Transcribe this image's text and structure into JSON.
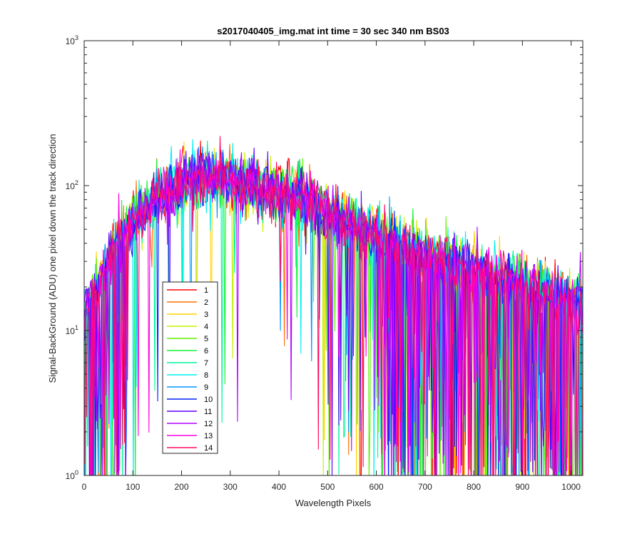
{
  "chart_data": {
    "type": "line",
    "title": "s2017040405_img.mat int time = 30 sec  340 nm BS03",
    "xlabel": "Wavelength Pixels",
    "ylabel": "Signal-BackGround (ADU) one pixel down the track direction",
    "xlim": [
      0,
      1024
    ],
    "ylim": [
      1,
      1000
    ],
    "yscale": "log",
    "grid": false,
    "legend_position": "lower-left",
    "xticks": [
      0,
      100,
      200,
      300,
      400,
      500,
      600,
      700,
      800,
      900,
      1000
    ],
    "xtick_labels": [
      "0",
      "100",
      "200",
      "300",
      "400",
      "500",
      "600",
      "700",
      "800",
      "900",
      "1000"
    ],
    "yticks": [
      1,
      10,
      100,
      1000
    ],
    "ytick_base": "10",
    "ytick_exponents": [
      "0",
      "1",
      "2",
      "3"
    ],
    "x_range": [
      1,
      1024
    ],
    "envelope_x": [
      0,
      20,
      40,
      60,
      80,
      100,
      120,
      140,
      160,
      180,
      200,
      220,
      240,
      260,
      280,
      300,
      320,
      340,
      360,
      380,
      400,
      420,
      440,
      460,
      480,
      500,
      520,
      540,
      560,
      580,
      600,
      620,
      640,
      660,
      680,
      700,
      720,
      740,
      760,
      780,
      800,
      820,
      840,
      860,
      880,
      900,
      920,
      940,
      960,
      980,
      1000,
      1024
    ],
    "envelope_y": [
      12,
      18,
      25,
      35,
      45,
      55,
      65,
      75,
      88,
      98,
      105,
      110,
      113,
      114,
      113,
      110,
      106,
      102,
      98,
      94,
      90,
      85,
      80,
      75,
      70,
      65,
      60,
      56,
      52,
      48,
      45,
      42,
      40,
      38,
      36,
      34,
      32,
      30,
      29,
      27,
      26,
      25,
      24,
      23,
      22,
      21,
      20,
      19,
      18,
      17,
      16,
      15
    ],
    "series": [
      {
        "name": "1",
        "color": "#ff0000"
      },
      {
        "name": "2",
        "color": "#ff7000"
      },
      {
        "name": "3",
        "color": "#ffd400"
      },
      {
        "name": "4",
        "color": "#c3f300"
      },
      {
        "name": "5",
        "color": "#5ef000"
      },
      {
        "name": "6",
        "color": "#13f234"
      },
      {
        "name": "7",
        "color": "#00f79a"
      },
      {
        "name": "8",
        "color": "#00f0f0"
      },
      {
        "name": "9",
        "color": "#0096ff"
      },
      {
        "name": "10",
        "color": "#0022ff"
      },
      {
        "name": "11",
        "color": "#6400ff"
      },
      {
        "name": "12",
        "color": "#b200ff"
      },
      {
        "name": "13",
        "color": "#ff00e6"
      },
      {
        "name": "14",
        "color": "#ff0a64"
      }
    ]
  }
}
